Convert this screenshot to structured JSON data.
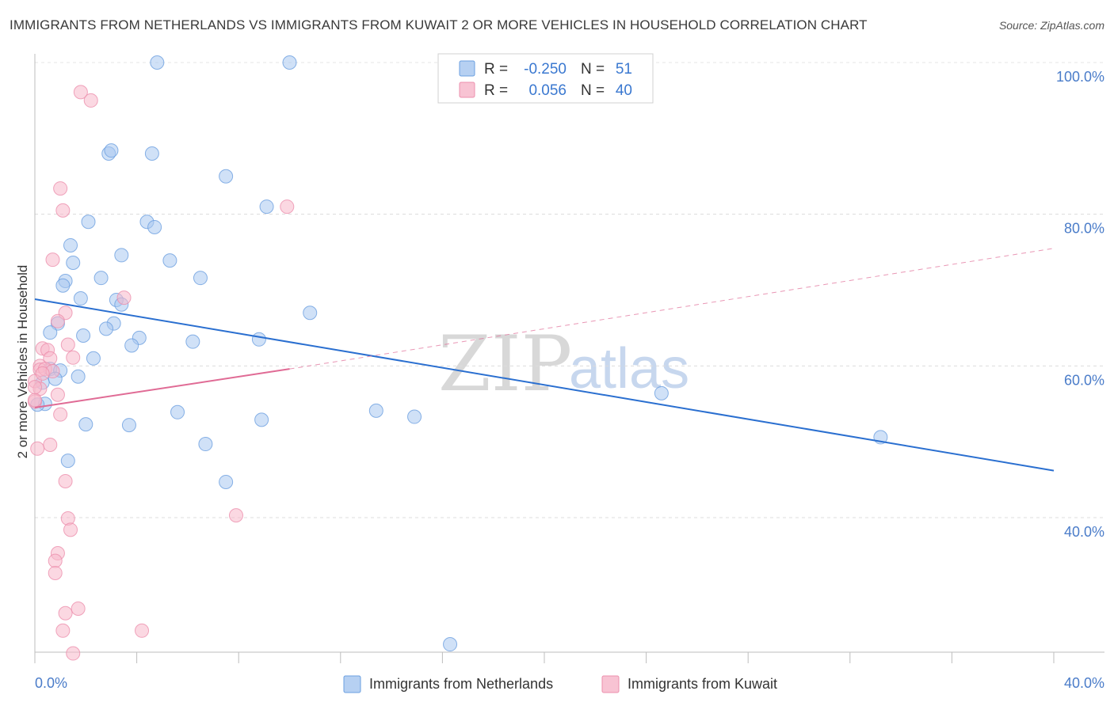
{
  "header": {
    "title": "IMMIGRANTS FROM NETHERLANDS VS IMMIGRANTS FROM KUWAIT 2 OR MORE VEHICLES IN HOUSEHOLD CORRELATION CHART",
    "source": "Source: ZipAtlas.com"
  },
  "watermark": {
    "zip": "ZIP",
    "atlas": "atlas"
  },
  "legend": {
    "rows": [
      {
        "r_label": "R =",
        "r_value": "-0.250",
        "n_label": "N =",
        "n_value": "51",
        "color": "#a9c8f0"
      },
      {
        "r_label": "R =",
        "r_value": "0.056",
        "n_label": "N =",
        "n_value": "40",
        "color": "#f7b8cb"
      }
    ]
  },
  "bottom_legend": {
    "items": [
      {
        "label": "Immigrants from Netherlands",
        "color": "#a9c8f0"
      },
      {
        "label": "Immigrants from Kuwait",
        "color": "#f7b8cb"
      }
    ]
  },
  "chart_data": {
    "type": "scatter",
    "title": "IMMIGRANTS FROM NETHERLANDS VS IMMIGRANTS FROM KUWAIT 2 OR MORE VEHICLES IN HOUSEHOLD CORRELATION CHART",
    "xlabel": "",
    "ylabel": "2 or more Vehicles in Household",
    "xlim": [
      0,
      40
    ],
    "ylim": [
      20,
      102
    ],
    "x_tick_labels": [
      "0.0%",
      "40.0%"
    ],
    "y_ticks": [
      40,
      60,
      80,
      100
    ],
    "y_tick_labels": [
      "40.0%",
      "60.0%",
      "80.0%",
      "100.0%"
    ],
    "grid": true,
    "legend_placement": "top-center",
    "series": [
      {
        "name": "Immigrants from Netherlands",
        "color": "#a9c8f0",
        "stroke": "#6b9fe0",
        "trend": {
          "x": [
            0,
            40
          ],
          "y": [
            68.8,
            46.2
          ],
          "color": "#2a6fd0",
          "dash": false
        },
        "points": [
          [
            4.8,
            100
          ],
          [
            10.0,
            100
          ],
          [
            2.9,
            88.0
          ],
          [
            3.0,
            88.4
          ],
          [
            4.6,
            88.0
          ],
          [
            7.5,
            85.0
          ],
          [
            9.1,
            81.0
          ],
          [
            2.1,
            79.0
          ],
          [
            4.4,
            79.0
          ],
          [
            4.7,
            78.3
          ],
          [
            1.4,
            75.9
          ],
          [
            3.4,
            74.6
          ],
          [
            5.3,
            73.9
          ],
          [
            1.5,
            73.6
          ],
          [
            2.6,
            71.6
          ],
          [
            6.5,
            71.6
          ],
          [
            1.2,
            71.2
          ],
          [
            1.1,
            70.6
          ],
          [
            1.8,
            68.9
          ],
          [
            3.2,
            68.7
          ],
          [
            3.4,
            68.1
          ],
          [
            10.8,
            67.0
          ],
          [
            0.9,
            65.6
          ],
          [
            3.1,
            65.6
          ],
          [
            2.8,
            64.9
          ],
          [
            0.6,
            64.4
          ],
          [
            1.9,
            64.0
          ],
          [
            4.1,
            63.7
          ],
          [
            8.8,
            63.5
          ],
          [
            6.2,
            63.2
          ],
          [
            3.8,
            62.7
          ],
          [
            2.3,
            61.0
          ],
          [
            0.6,
            59.6
          ],
          [
            1.0,
            59.4
          ],
          [
            1.7,
            58.6
          ],
          [
            0.8,
            58.3
          ],
          [
            0.3,
            57.8
          ],
          [
            24.6,
            56.4
          ],
          [
            0.4,
            55.0
          ],
          [
            0.1,
            54.9
          ],
          [
            13.4,
            54.1
          ],
          [
            5.6,
            53.9
          ],
          [
            14.9,
            53.3
          ],
          [
            8.9,
            52.9
          ],
          [
            2.0,
            52.3
          ],
          [
            3.7,
            52.2
          ],
          [
            33.2,
            50.6
          ],
          [
            6.7,
            49.7
          ],
          [
            1.3,
            47.5
          ],
          [
            7.5,
            44.7
          ],
          [
            16.3,
            23.3
          ]
        ]
      },
      {
        "name": "Immigrants from Kuwait",
        "color": "#f7b8cb",
        "stroke": "#ec8fad",
        "trend": {
          "x": [
            0,
            10
          ],
          "y": [
            54.5,
            59.6
          ],
          "color": "#e06b95",
          "dash": false,
          "extension": {
            "x": [
              10,
              40
            ],
            "y": [
              59.6,
              75.5
            ],
            "dash": true
          }
        },
        "points": [
          [
            1.8,
            96.1
          ],
          [
            2.2,
            95.0
          ],
          [
            1.0,
            83.4
          ],
          [
            1.1,
            80.5
          ],
          [
            9.9,
            81.0
          ],
          [
            0.7,
            74.0
          ],
          [
            3.5,
            69.0
          ],
          [
            1.2,
            67.0
          ],
          [
            0.9,
            65.9
          ],
          [
            1.3,
            62.8
          ],
          [
            0.3,
            62.3
          ],
          [
            0.5,
            62.1
          ],
          [
            1.5,
            61.1
          ],
          [
            0.6,
            61.0
          ],
          [
            0.2,
            60.0
          ],
          [
            0.2,
            59.5
          ],
          [
            0.4,
            59.6
          ],
          [
            0.7,
            59.3
          ],
          [
            0.0,
            58.0
          ],
          [
            0.2,
            57.0
          ],
          [
            0.9,
            56.2
          ],
          [
            0.0,
            55.3
          ],
          [
            1.0,
            53.6
          ],
          [
            0.6,
            49.6
          ],
          [
            0.1,
            49.1
          ],
          [
            1.2,
            44.8
          ],
          [
            7.9,
            40.3
          ],
          [
            1.3,
            39.9
          ],
          [
            1.4,
            38.4
          ],
          [
            0.9,
            35.3
          ],
          [
            0.8,
            34.3
          ],
          [
            0.8,
            32.7
          ],
          [
            1.7,
            28.0
          ],
          [
            1.2,
            27.4
          ],
          [
            1.1,
            25.1
          ],
          [
            4.2,
            25.1
          ],
          [
            1.5,
            22.1
          ],
          [
            0.0,
            55.5
          ],
          [
            0.0,
            57.2
          ],
          [
            0.3,
            59.0
          ]
        ]
      }
    ]
  }
}
